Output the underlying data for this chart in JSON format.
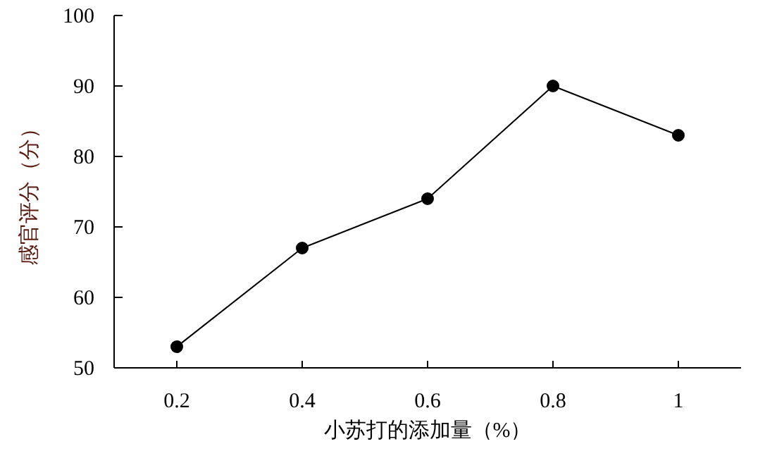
{
  "chart_data": {
    "type": "line",
    "xlabel": "小苏打的添加量（%）",
    "ylabel": "感官评分（分）",
    "x": [
      0.2,
      0.4,
      0.6,
      0.8,
      1
    ],
    "series": [
      {
        "color": "#000000",
        "values": [
          53,
          67,
          74,
          90,
          83
        ]
      }
    ],
    "xlim": [
      0.1,
      1.1
    ],
    "xticks": [
      0.2,
      0.4,
      0.6,
      0.8,
      1
    ],
    "ylim": [
      50,
      100
    ],
    "yticks": [
      50,
      60,
      70,
      80,
      90,
      100
    ],
    "grid": false,
    "legend": false,
    "marker": "circle",
    "line_style": "solid"
  }
}
